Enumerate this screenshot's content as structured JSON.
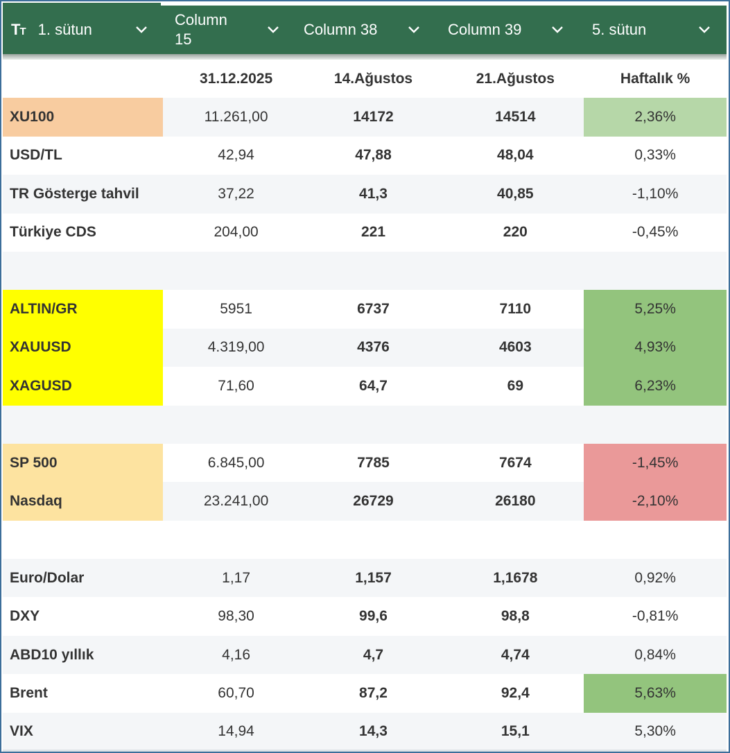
{
  "colors": {
    "header_bg": "#336e4e",
    "frame_border": "#3c6e9a",
    "orange": "#f8cca0",
    "yellow": "#ffff00",
    "light_orange": "#fde3a0",
    "light_green": "#b6d7a8",
    "green": "#93c47d",
    "red": "#ea9999",
    "alt_row": "#f4f6f8"
  },
  "header": {
    "type_icon": "text-type-icon",
    "columns": [
      {
        "label": "1. sütun",
        "icon": "chevron-down-icon"
      },
      {
        "label": "Column 15",
        "icon": "chevron-down-icon"
      },
      {
        "label": "Column 38",
        "icon": "chevron-down-icon"
      },
      {
        "label": "Column 39",
        "icon": "chevron-down-icon"
      },
      {
        "label": "5. sütun",
        "icon": "chevron-down-icon"
      }
    ]
  },
  "column_headers": [
    "",
    "31.12.2025",
    "14.Ağustos",
    "21.Ağustos",
    "Haftalık %"
  ],
  "rows": [
    {
      "name": "XU100",
      "v1": "11.261,00",
      "v2": "14172",
      "v3": "14514",
      "pct": "2,36%",
      "name_bg": "orange",
      "pct_bg": "light_green"
    },
    {
      "name": "USD/TL",
      "v1": "42,94",
      "v2": "47,88",
      "v3": "48,04",
      "pct": "0,33%",
      "name_bg": "",
      "pct_bg": ""
    },
    {
      "name": "TR Gösterge tahvil",
      "v1": "37,22",
      "v2": "41,3",
      "v3": "40,85",
      "pct": "-1,10%",
      "name_bg": "",
      "pct_bg": ""
    },
    {
      "name": "Türkiye CDS",
      "v1": "204,00",
      "v2": "221",
      "v3": "220",
      "pct": "-0,45%",
      "name_bg": "",
      "pct_bg": ""
    },
    {
      "name": "",
      "v1": "",
      "v2": "",
      "v3": "",
      "pct": "",
      "name_bg": "",
      "pct_bg": ""
    },
    {
      "name": "ALTIN/GR",
      "v1": "5951",
      "v2": "6737",
      "v3": "7110",
      "pct": "5,25%",
      "name_bg": "yellow",
      "pct_bg": "green"
    },
    {
      "name": "XAUUSD",
      "v1": "4.319,00",
      "v2": "4376",
      "v3": "4603",
      "pct": "4,93%",
      "name_bg": "yellow",
      "pct_bg": "green"
    },
    {
      "name": "XAGUSD",
      "v1": "71,60",
      "v2": "64,7",
      "v3": "69",
      "pct": "6,23%",
      "name_bg": "yellow",
      "pct_bg": "green"
    },
    {
      "name": "",
      "v1": "",
      "v2": "",
      "v3": "",
      "pct": "",
      "name_bg": "",
      "pct_bg": ""
    },
    {
      "name": "SP 500",
      "v1": "6.845,00",
      "v2": "7785",
      "v3": "7674",
      "pct": "-1,45%",
      "name_bg": "light_orange",
      "pct_bg": "red"
    },
    {
      "name": "Nasdaq",
      "v1": "23.241,00",
      "v2": "26729",
      "v3": "26180",
      "pct": "-2,10%",
      "name_bg": "light_orange",
      "pct_bg": "red"
    },
    {
      "name": "",
      "v1": "",
      "v2": "",
      "v3": "",
      "pct": "",
      "name_bg": "",
      "pct_bg": ""
    },
    {
      "name": "Euro/Dolar",
      "v1": "1,17",
      "v2": "1,157",
      "v3": "1,1678",
      "pct": "0,92%",
      "name_bg": "",
      "pct_bg": ""
    },
    {
      "name": "DXY",
      "v1": "98,30",
      "v2": "99,6",
      "v3": "98,8",
      "pct": "-0,81%",
      "name_bg": "",
      "pct_bg": ""
    },
    {
      "name": "ABD10 yıllık",
      "v1": "4,16",
      "v2": "4,7",
      "v3": "4,74",
      "pct": "0,84%",
      "name_bg": "",
      "pct_bg": ""
    },
    {
      "name": "Brent",
      "v1": "60,70",
      "v2": "87,2",
      "v3": "92,4",
      "pct": "5,63%",
      "name_bg": "",
      "pct_bg": "green"
    },
    {
      "name": "VIX",
      "v1": "14,94",
      "v2": "14,3",
      "v3": "15,1",
      "pct": "5,30%",
      "name_bg": "",
      "pct_bg": ""
    }
  ]
}
